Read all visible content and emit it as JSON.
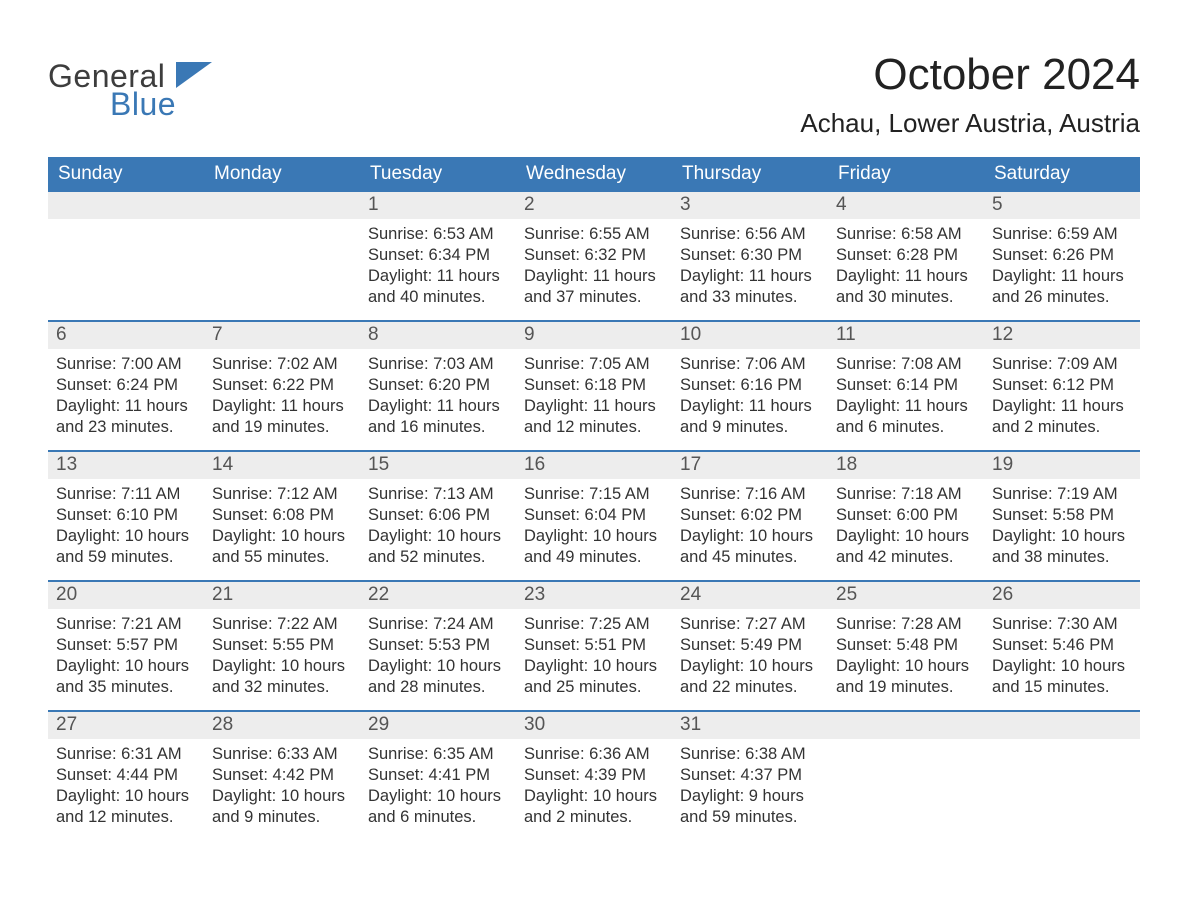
{
  "brand": {
    "general": "General",
    "blue": "Blue"
  },
  "colors": {
    "header_bg": "#3a78b5",
    "week_divider": "#3a78b5",
    "daynum_bg": "#ededed",
    "text": "#333333",
    "title": "#222222",
    "page_bg": "#ffffff",
    "logo_blue": "#3a78b5"
  },
  "typography": {
    "month_title_fontsize": 44,
    "location_fontsize": 26,
    "dayhead_fontsize": 19,
    "daynum_fontsize": 19,
    "body_fontsize": 16.5
  },
  "title": "October 2024",
  "location": "Achau, Lower Austria, Austria",
  "day_headers": [
    "Sunday",
    "Monday",
    "Tuesday",
    "Wednesday",
    "Thursday",
    "Friday",
    "Saturday"
  ],
  "weeks": [
    [
      {
        "empty": true
      },
      {
        "empty": true
      },
      {
        "day": "1",
        "sunrise": "Sunrise: 6:53 AM",
        "sunset": "Sunset: 6:34 PM",
        "daylight": "Daylight: 11 hours and 40 minutes."
      },
      {
        "day": "2",
        "sunrise": "Sunrise: 6:55 AM",
        "sunset": "Sunset: 6:32 PM",
        "daylight": "Daylight: 11 hours and 37 minutes."
      },
      {
        "day": "3",
        "sunrise": "Sunrise: 6:56 AM",
        "sunset": "Sunset: 6:30 PM",
        "daylight": "Daylight: 11 hours and 33 minutes."
      },
      {
        "day": "4",
        "sunrise": "Sunrise: 6:58 AM",
        "sunset": "Sunset: 6:28 PM",
        "daylight": "Daylight: 11 hours and 30 minutes."
      },
      {
        "day": "5",
        "sunrise": "Sunrise: 6:59 AM",
        "sunset": "Sunset: 6:26 PM",
        "daylight": "Daylight: 11 hours and 26 minutes."
      }
    ],
    [
      {
        "day": "6",
        "sunrise": "Sunrise: 7:00 AM",
        "sunset": "Sunset: 6:24 PM",
        "daylight": "Daylight: 11 hours and 23 minutes."
      },
      {
        "day": "7",
        "sunrise": "Sunrise: 7:02 AM",
        "sunset": "Sunset: 6:22 PM",
        "daylight": "Daylight: 11 hours and 19 minutes."
      },
      {
        "day": "8",
        "sunrise": "Sunrise: 7:03 AM",
        "sunset": "Sunset: 6:20 PM",
        "daylight": "Daylight: 11 hours and 16 minutes."
      },
      {
        "day": "9",
        "sunrise": "Sunrise: 7:05 AM",
        "sunset": "Sunset: 6:18 PM",
        "daylight": "Daylight: 11 hours and 12 minutes."
      },
      {
        "day": "10",
        "sunrise": "Sunrise: 7:06 AM",
        "sunset": "Sunset: 6:16 PM",
        "daylight": "Daylight: 11 hours and 9 minutes."
      },
      {
        "day": "11",
        "sunrise": "Sunrise: 7:08 AM",
        "sunset": "Sunset: 6:14 PM",
        "daylight": "Daylight: 11 hours and 6 minutes."
      },
      {
        "day": "12",
        "sunrise": "Sunrise: 7:09 AM",
        "sunset": "Sunset: 6:12 PM",
        "daylight": "Daylight: 11 hours and 2 minutes."
      }
    ],
    [
      {
        "day": "13",
        "sunrise": "Sunrise: 7:11 AM",
        "sunset": "Sunset: 6:10 PM",
        "daylight": "Daylight: 10 hours and 59 minutes."
      },
      {
        "day": "14",
        "sunrise": "Sunrise: 7:12 AM",
        "sunset": "Sunset: 6:08 PM",
        "daylight": "Daylight: 10 hours and 55 minutes."
      },
      {
        "day": "15",
        "sunrise": "Sunrise: 7:13 AM",
        "sunset": "Sunset: 6:06 PM",
        "daylight": "Daylight: 10 hours and 52 minutes."
      },
      {
        "day": "16",
        "sunrise": "Sunrise: 7:15 AM",
        "sunset": "Sunset: 6:04 PM",
        "daylight": "Daylight: 10 hours and 49 minutes."
      },
      {
        "day": "17",
        "sunrise": "Sunrise: 7:16 AM",
        "sunset": "Sunset: 6:02 PM",
        "daylight": "Daylight: 10 hours and 45 minutes."
      },
      {
        "day": "18",
        "sunrise": "Sunrise: 7:18 AM",
        "sunset": "Sunset: 6:00 PM",
        "daylight": "Daylight: 10 hours and 42 minutes."
      },
      {
        "day": "19",
        "sunrise": "Sunrise: 7:19 AM",
        "sunset": "Sunset: 5:58 PM",
        "daylight": "Daylight: 10 hours and 38 minutes."
      }
    ],
    [
      {
        "day": "20",
        "sunrise": "Sunrise: 7:21 AM",
        "sunset": "Sunset: 5:57 PM",
        "daylight": "Daylight: 10 hours and 35 minutes."
      },
      {
        "day": "21",
        "sunrise": "Sunrise: 7:22 AM",
        "sunset": "Sunset: 5:55 PM",
        "daylight": "Daylight: 10 hours and 32 minutes."
      },
      {
        "day": "22",
        "sunrise": "Sunrise: 7:24 AM",
        "sunset": "Sunset: 5:53 PM",
        "daylight": "Daylight: 10 hours and 28 minutes."
      },
      {
        "day": "23",
        "sunrise": "Sunrise: 7:25 AM",
        "sunset": "Sunset: 5:51 PM",
        "daylight": "Daylight: 10 hours and 25 minutes."
      },
      {
        "day": "24",
        "sunrise": "Sunrise: 7:27 AM",
        "sunset": "Sunset: 5:49 PM",
        "daylight": "Daylight: 10 hours and 22 minutes."
      },
      {
        "day": "25",
        "sunrise": "Sunrise: 7:28 AM",
        "sunset": "Sunset: 5:48 PM",
        "daylight": "Daylight: 10 hours and 19 minutes."
      },
      {
        "day": "26",
        "sunrise": "Sunrise: 7:30 AM",
        "sunset": "Sunset: 5:46 PM",
        "daylight": "Daylight: 10 hours and 15 minutes."
      }
    ],
    [
      {
        "day": "27",
        "sunrise": "Sunrise: 6:31 AM",
        "sunset": "Sunset: 4:44 PM",
        "daylight": "Daylight: 10 hours and 12 minutes."
      },
      {
        "day": "28",
        "sunrise": "Sunrise: 6:33 AM",
        "sunset": "Sunset: 4:42 PM",
        "daylight": "Daylight: 10 hours and 9 minutes."
      },
      {
        "day": "29",
        "sunrise": "Sunrise: 6:35 AM",
        "sunset": "Sunset: 4:41 PM",
        "daylight": "Daylight: 10 hours and 6 minutes."
      },
      {
        "day": "30",
        "sunrise": "Sunrise: 6:36 AM",
        "sunset": "Sunset: 4:39 PM",
        "daylight": "Daylight: 10 hours and 2 minutes."
      },
      {
        "day": "31",
        "sunrise": "Sunrise: 6:38 AM",
        "sunset": "Sunset: 4:37 PM",
        "daylight": "Daylight: 9 hours and 59 minutes."
      },
      {
        "empty": true
      },
      {
        "empty": true
      }
    ]
  ]
}
